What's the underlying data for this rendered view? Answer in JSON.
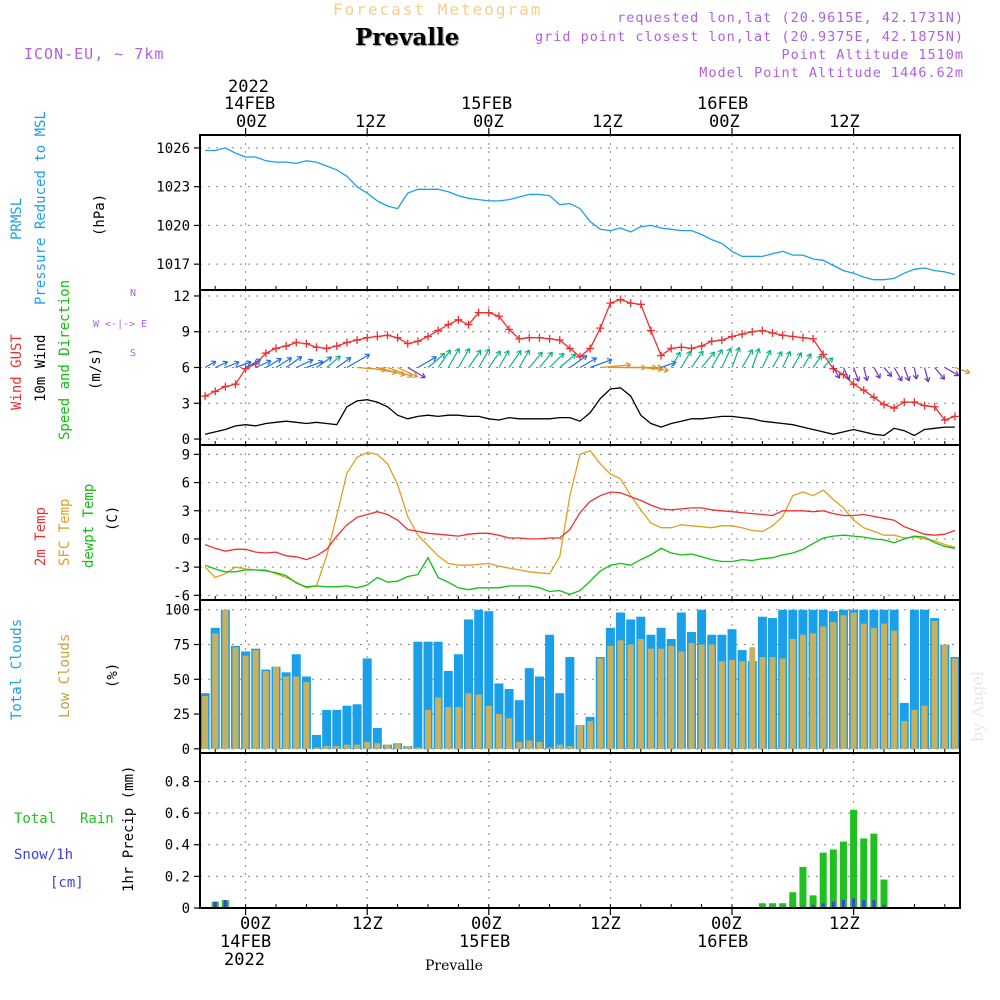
{
  "header": {
    "subtitle": "Forecast Meteogram",
    "title": "Prevalle",
    "model": "ICON-EU, ~ 7km",
    "requested": "requested lon,lat (20.9615E, 42.1731N)",
    "gridpoint": "grid point closest lon,lat (20.9375E, 42.1875N)",
    "altitude": "Point Altitude 1510m",
    "model_altitude": "Model Point Altitude 1446.62m"
  },
  "time_axis": {
    "top_year": "2022",
    "top_labels": [
      "14FEB",
      "00Z",
      "12Z",
      "15FEB",
      "00Z",
      "12Z",
      "16FEB",
      "00Z",
      "12Z"
    ],
    "bottom_labels": [
      "00Z",
      "14FEB",
      "2022",
      "12Z",
      "00Z",
      "15FEB",
      "12Z",
      "00Z",
      "16FEB",
      "12Z"
    ],
    "footer": "Prevalle",
    "credit": "by Angel"
  },
  "labels": {
    "pressure": [
      "PRMSL",
      "Pressure Reduced to MSL",
      "(hPa)"
    ],
    "wind": [
      "Wind GUST",
      "10m Wind",
      "Speed and Direction",
      "(m/s)"
    ],
    "compass": [
      "N",
      "W <-|-> E",
      "S"
    ],
    "temp": [
      "2m Temp",
      "SFC Temp",
      "dewpt Temp",
      "(C)"
    ],
    "clouds": [
      "Total Clouds",
      "Low Clouds",
      "(%)"
    ],
    "precip": [
      "1hr Precip (mm)"
    ],
    "precip_legend": [
      "Total",
      "Rain",
      "Snow/1h",
      "[cm]"
    ]
  },
  "colors": {
    "pressure": "#1aa0e8",
    "gust": "#ee3030",
    "wind": "#000000",
    "t2m": "#ee3030",
    "sfc": "#e0a020",
    "dewpt": "#10c010",
    "total_clouds": "#1aa0e8",
    "low_clouds": "#c8b060",
    "rain": "#20c020",
    "snow": "#4040e0",
    "purple": "#b060e0"
  },
  "chart_data": [
    {
      "type": "line",
      "name": "pressure",
      "x_unit": "hours since 14FEB 00Z",
      "ylim": [
        1015,
        1027
      ],
      "yticks": [
        1017,
        1020,
        1023,
        1026
      ],
      "x": [
        -4,
        -3,
        -2,
        -1,
        0,
        1,
        2,
        3,
        4,
        5,
        6,
        7,
        8,
        9,
        10,
        11,
        12,
        13,
        14,
        15,
        16,
        17,
        18,
        19,
        20,
        21,
        22,
        23,
        24,
        25,
        26,
        27,
        28,
        29,
        30,
        31,
        32,
        33,
        34,
        35,
        36,
        37,
        38,
        39,
        40,
        41,
        42,
        43,
        44,
        45,
        46,
        47,
        48,
        49,
        50,
        51,
        52,
        53,
        54,
        55,
        56,
        57,
        58,
        59,
        60,
        61,
        62,
        63,
        64,
        65,
        66,
        67,
        68,
        69,
        70
      ],
      "values": [
        1025.8,
        1025.8,
        1026.0,
        1025.6,
        1025.3,
        1025.3,
        1025.0,
        1024.9,
        1024.9,
        1024.8,
        1025.0,
        1024.9,
        1024.6,
        1024.3,
        1023.8,
        1023.0,
        1022.5,
        1021.9,
        1021.5,
        1021.3,
        1022.5,
        1022.8,
        1022.8,
        1022.8,
        1022.6,
        1022.3,
        1022.1,
        1022.0,
        1021.9,
        1021.9,
        1022.0,
        1022.2,
        1022.4,
        1022.4,
        1022.3,
        1021.6,
        1021.7,
        1021.3,
        1020.3,
        1019.7,
        1019.6,
        1019.8,
        1019.5,
        1019.9,
        1020.0,
        1019.8,
        1019.7,
        1019.6,
        1019.6,
        1019.3,
        1018.9,
        1018.6,
        1018.0,
        1017.6,
        1017.6,
        1017.6,
        1017.8,
        1018.0,
        1017.7,
        1017.7,
        1017.4,
        1017.3,
        1016.9,
        1016.5,
        1016.3,
        1016.0,
        1015.8,
        1015.8,
        1015.9,
        1016.3,
        1016.6,
        1016.7,
        1016.5,
        1016.4,
        1016.2
      ]
    },
    {
      "type": "line",
      "name": "wind",
      "x_unit": "hours since 14FEB 00Z",
      "ylim": [
        -0.5,
        12.5
      ],
      "yticks": [
        0,
        3,
        6,
        9,
        12
      ],
      "x": [
        -4,
        -3,
        -2,
        -1,
        0,
        1,
        2,
        3,
        4,
        5,
        6,
        7,
        8,
        9,
        10,
        11,
        12,
        13,
        14,
        15,
        16,
        17,
        18,
        19,
        20,
        21,
        22,
        23,
        24,
        25,
        26,
        27,
        28,
        29,
        30,
        31,
        32,
        33,
        34,
        35,
        36,
        37,
        38,
        39,
        40,
        41,
        42,
        43,
        44,
        45,
        46,
        47,
        48,
        49,
        50,
        51,
        52,
        53,
        54,
        55,
        56,
        57,
        58,
        59,
        60,
        61,
        62,
        63,
        64,
        65,
        66,
        67,
        68,
        69,
        70
      ],
      "gust": [
        3.6,
        4.0,
        4.4,
        4.6,
        5.9,
        6.3,
        7.2,
        7.6,
        7.8,
        8.1,
        8.0,
        7.7,
        7.6,
        7.8,
        8.1,
        8.3,
        8.5,
        8.6,
        8.7,
        8.5,
        8.0,
        8.2,
        8.6,
        9.1,
        9.6,
        10.0,
        9.6,
        10.6,
        10.6,
        10.3,
        9.2,
        8.4,
        8.5,
        8.5,
        8.4,
        8.3,
        7.6,
        6.9,
        7.6,
        9.3,
        11.4,
        11.7,
        11.4,
        11.3,
        9.1,
        7.0,
        7.6,
        7.7,
        7.6,
        7.8,
        8.2,
        8.3,
        8.6,
        8.8,
        9.0,
        9.1,
        8.9,
        8.7,
        8.6,
        8.5,
        8.4,
        7.1,
        5.9,
        5.4,
        4.6,
        4.1,
        3.5,
        2.9,
        2.6,
        3.1,
        3.1,
        2.8,
        2.7,
        1.6,
        1.9
      ],
      "wind": [
        0.4,
        0.6,
        0.8,
        1.1,
        1.2,
        1.1,
        1.3,
        1.4,
        1.5,
        1.4,
        1.3,
        1.4,
        1.3,
        1.2,
        2.7,
        3.2,
        3.3,
        3.1,
        2.7,
        2.0,
        1.7,
        1.9,
        2.0,
        1.9,
        2.0,
        2.0,
        1.9,
        1.9,
        1.7,
        1.6,
        1.8,
        1.7,
        1.7,
        1.7,
        1.7,
        1.8,
        1.8,
        1.5,
        2.2,
        3.4,
        4.2,
        4.3,
        3.6,
        2.0,
        1.3,
        1.0,
        1.3,
        1.5,
        1.7,
        1.7,
        1.8,
        1.9,
        1.9,
        1.8,
        1.7,
        1.5,
        1.4,
        1.3,
        1.2,
        1.0,
        0.8,
        0.6,
        0.4,
        0.6,
        0.8,
        0.6,
        0.4,
        0.3,
        0.9,
        0.7,
        0.3,
        0.8,
        0.9,
        1.0,
        1.0
      ],
      "direction_deg": [
        240,
        245,
        248,
        250,
        242,
        246,
        240,
        238,
        235,
        245,
        250,
        235,
        230,
        235,
        240,
        275,
        280,
        285,
        290,
        295,
        300,
        240,
        230,
        215,
        210,
        210,
        215,
        210,
        215,
        210,
        215,
        210,
        220,
        220,
        225,
        230,
        235,
        240,
        250,
        265,
        270,
        270,
        270,
        275,
        280,
        250,
        210,
        210,
        215,
        220,
        210,
        205,
        200,
        210,
        200,
        205,
        210,
        205,
        210,
        210,
        215,
        225,
        330,
        335,
        340,
        345,
        330,
        320,
        330,
        340,
        350,
        345,
        320,
        300,
        290
      ]
    },
    {
      "type": "line",
      "name": "temperature",
      "x_unit": "hours since 14FEB 00Z",
      "ylim": [
        -6.5,
        10
      ],
      "yticks": [
        -6,
        -3,
        0,
        3,
        6,
        9
      ],
      "x": [
        -4,
        -3,
        -2,
        -1,
        0,
        1,
        2,
        3,
        4,
        5,
        6,
        7,
        8,
        9,
        10,
        11,
        12,
        13,
        14,
        15,
        16,
        17,
        18,
        19,
        20,
        21,
        22,
        23,
        24,
        25,
        26,
        27,
        28,
        29,
        30,
        31,
        32,
        33,
        34,
        35,
        36,
        37,
        38,
        39,
        40,
        41,
        42,
        43,
        44,
        45,
        46,
        47,
        48,
        49,
        50,
        51,
        52,
        53,
        54,
        55,
        56,
        57,
        58,
        59,
        60,
        61,
        62,
        63,
        64,
        65,
        66,
        67,
        68,
        69,
        70
      ],
      "t2m": [
        -0.6,
        -1.0,
        -1.3,
        -1.1,
        -1.1,
        -1.4,
        -1.5,
        -1.4,
        -1.8,
        -1.9,
        -2.2,
        -1.8,
        -1.1,
        0.3,
        1.5,
        2.3,
        2.6,
        2.9,
        2.6,
        2.0,
        1.0,
        0.8,
        0.6,
        0.5,
        0.4,
        0.3,
        0.5,
        0.6,
        0.6,
        0.4,
        0.1,
        0.1,
        0.0,
        0.0,
        0.1,
        0.1,
        1.0,
        2.8,
        4.0,
        4.6,
        5.0,
        4.9,
        4.5,
        4.1,
        3.6,
        3.2,
        3.1,
        3.2,
        3.3,
        3.3,
        3.1,
        3.0,
        2.9,
        2.8,
        2.7,
        2.6,
        2.5,
        3.0,
        3.0,
        3.0,
        2.9,
        3.0,
        2.7,
        2.5,
        2.5,
        2.6,
        2.4,
        2.2,
        2.0,
        1.3,
        0.9,
        0.5,
        0.4,
        0.5,
        0.9
      ],
      "sfc": [
        -3.0,
        -4.1,
        -3.7,
        -3.0,
        -3.2,
        -3.3,
        -3.3,
        -3.7,
        -4.1,
        -4.6,
        -5.2,
        -5.0,
        -1.8,
        2.5,
        7.0,
        8.7,
        9.2,
        9.0,
        8.0,
        5.8,
        2.4,
        0.4,
        -0.7,
        -1.8,
        -2.6,
        -2.8,
        -2.8,
        -2.7,
        -2.6,
        -2.9,
        -3.1,
        -3.3,
        -3.5,
        -3.6,
        -3.7,
        -1.9,
        4.6,
        9.0,
        9.4,
        8.0,
        6.9,
        6.4,
        4.6,
        3.1,
        1.7,
        1.2,
        1.2,
        1.5,
        1.4,
        1.3,
        1.2,
        1.4,
        1.4,
        1.2,
        0.9,
        0.8,
        1.4,
        2.4,
        4.6,
        5.0,
        4.6,
        5.2,
        4.2,
        3.3,
        2.0,
        1.2,
        0.8,
        0.4,
        0.4,
        0.1,
        0.2,
        0.0,
        -0.2,
        -0.6,
        -0.9
      ],
      "dewpt": [
        -2.8,
        -3.2,
        -3.5,
        -3.5,
        -3.3,
        -3.3,
        -3.4,
        -3.6,
        -3.9,
        -4.7,
        -5.1,
        -5.0,
        -5.1,
        -5.1,
        -5.0,
        -5.2,
        -4.9,
        -4.1,
        -4.6,
        -4.5,
        -4.0,
        -3.8,
        -2.0,
        -4.1,
        -4.6,
        -5.2,
        -5.4,
        -5.2,
        -5.2,
        -5.2,
        -5.0,
        -5.0,
        -5.0,
        -5.2,
        -5.6,
        -5.5,
        -5.9,
        -5.5,
        -4.5,
        -3.4,
        -2.8,
        -2.6,
        -2.8,
        -2.2,
        -1.7,
        -1.0,
        -1.5,
        -1.7,
        -1.6,
        -1.9,
        -2.2,
        -2.4,
        -2.4,
        -2.2,
        -2.3,
        -2.1,
        -2.0,
        -1.7,
        -1.5,
        -1.1,
        -0.5,
        0.1,
        0.3,
        0.4,
        0.3,
        0.2,
        0.0,
        -0.1,
        -0.4,
        0.0,
        0.3,
        0.2,
        -0.4,
        -0.8,
        -1.0
      ]
    },
    {
      "type": "bar",
      "name": "clouds",
      "x_unit": "hours since 14FEB 00Z",
      "ylim": [
        -3,
        107
      ],
      "yticks": [
        0,
        25,
        50,
        75,
        100
      ],
      "x": [
        -4,
        -3,
        -2,
        -1,
        0,
        1,
        2,
        3,
        4,
        5,
        6,
        7,
        8,
        9,
        10,
        11,
        12,
        13,
        14,
        15,
        16,
        17,
        18,
        19,
        20,
        21,
        22,
        23,
        24,
        25,
        26,
        27,
        28,
        29,
        30,
        31,
        32,
        33,
        34,
        35,
        36,
        37,
        38,
        39,
        40,
        41,
        42,
        43,
        44,
        45,
        46,
        47,
        48,
        49,
        50,
        51,
        52,
        53,
        54,
        55,
        56,
        57,
        58,
        59,
        60,
        61,
        62,
        63,
        64,
        65,
        66,
        67,
        68,
        69,
        70
      ],
      "total": [
        40,
        87,
        100,
        74,
        70,
        72,
        57,
        59,
        55,
        68,
        52,
        10,
        28,
        28,
        31,
        32,
        65,
        15,
        3,
        4,
        2,
        77,
        77,
        77,
        56,
        68,
        93,
        100,
        99,
        47,
        43,
        35,
        58,
        52,
        82,
        40,
        66,
        17,
        23,
        66,
        87,
        98,
        93,
        95,
        82,
        87,
        79,
        98,
        84,
        100,
        82,
        82,
        86,
        71,
        63,
        95,
        94,
        100,
        100,
        100,
        100,
        100,
        99,
        100,
        100,
        100,
        100,
        100,
        100,
        33,
        100,
        100,
        94,
        75,
        66
      ],
      "low": [
        38,
        83,
        100,
        73,
        67,
        71,
        56,
        59,
        52,
        52,
        48,
        1,
        2,
        2,
        3,
        3,
        5,
        4,
        3,
        4,
        2,
        1,
        28,
        37,
        30,
        30,
        40,
        39,
        31,
        25,
        22,
        5,
        6,
        5,
        1,
        3,
        2,
        17,
        20,
        65,
        74,
        78,
        75,
        79,
        72,
        72,
        74,
        70,
        76,
        75,
        75,
        63,
        64,
        63,
        73,
        66,
        66,
        65,
        79,
        82,
        83,
        88,
        91,
        96,
        98,
        90,
        87,
        90,
        85,
        20,
        28,
        31,
        92,
        75,
        65
      ]
    },
    {
      "type": "bar",
      "name": "precipitation",
      "x_unit": "hours since 14FEB 00Z",
      "ylim": [
        0,
        0.98
      ],
      "yticks": [
        0,
        0.2,
        0.4,
        0.6,
        0.8
      ],
      "x": [
        -3,
        -2,
        51,
        52,
        53,
        54,
        55,
        56,
        57,
        58,
        59,
        60,
        61,
        62,
        63,
        64
      ],
      "total": [
        0.04,
        0.05,
        0.03,
        0.03,
        0.03,
        0.1,
        0.26,
        0.08,
        0.35,
        0.37,
        0.42,
        0.62,
        0.44,
        0.47,
        0.18,
        0.0
      ],
      "snow": [
        0.04,
        0.05,
        0.0,
        0.0,
        0.0,
        0.0,
        0.01,
        0.02,
        0.03,
        0.04,
        0.05,
        0.06,
        0.05,
        0.05,
        0.02,
        0.0
      ]
    }
  ]
}
